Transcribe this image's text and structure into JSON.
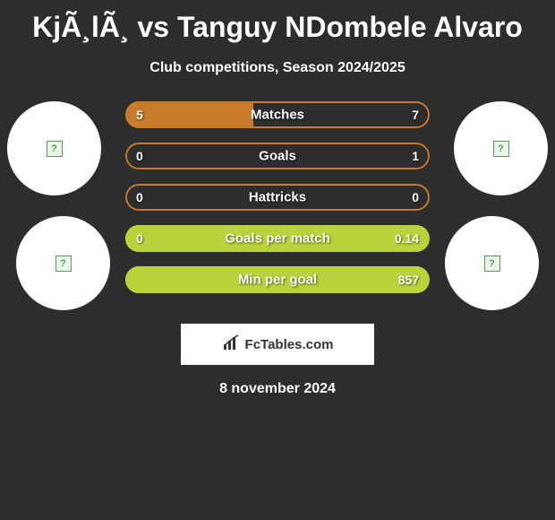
{
  "title": "KjÃ¸lÃ¸ vs Tanguy NDombele Alvaro",
  "subtitle": "Club competitions, Season 2024/2025",
  "stats": [
    {
      "label": "Matches",
      "left_val": "5",
      "right_val": "7",
      "left_pct": 42,
      "right_pct": 58,
      "border_color": "#c97a2a",
      "left_color": "#c97a2a",
      "right_color": "transparent"
    },
    {
      "label": "Goals",
      "left_val": "0",
      "right_val": "1",
      "left_pct": 0,
      "right_pct": 100,
      "border_color": "#c97a2a",
      "left_color": "transparent",
      "right_color": "transparent"
    },
    {
      "label": "Hattricks",
      "left_val": "0",
      "right_val": "0",
      "left_pct": 0,
      "right_pct": 0,
      "border_color": "#c97a2a",
      "left_color": "transparent",
      "right_color": "transparent"
    },
    {
      "label": "Goals per match",
      "left_val": "0",
      "right_val": "0.14",
      "left_pct": 0,
      "right_pct": 100,
      "border_color": "#b8d43a",
      "left_color": "transparent",
      "right_color": "#b8d43a"
    },
    {
      "label": "Min per goal",
      "left_val": "",
      "right_val": "857",
      "left_pct": 0,
      "right_pct": 100,
      "border_color": "#b8d43a",
      "left_color": "transparent",
      "right_color": "#b8d43a"
    }
  ],
  "brand": "FcTables.com",
  "date": "8 november 2024",
  "colors": {
    "bg": "#2d2d2d",
    "circle": "#ffffff",
    "text": "#ffffff",
    "orange": "#c97a2a",
    "green": "#b8d43a"
  }
}
